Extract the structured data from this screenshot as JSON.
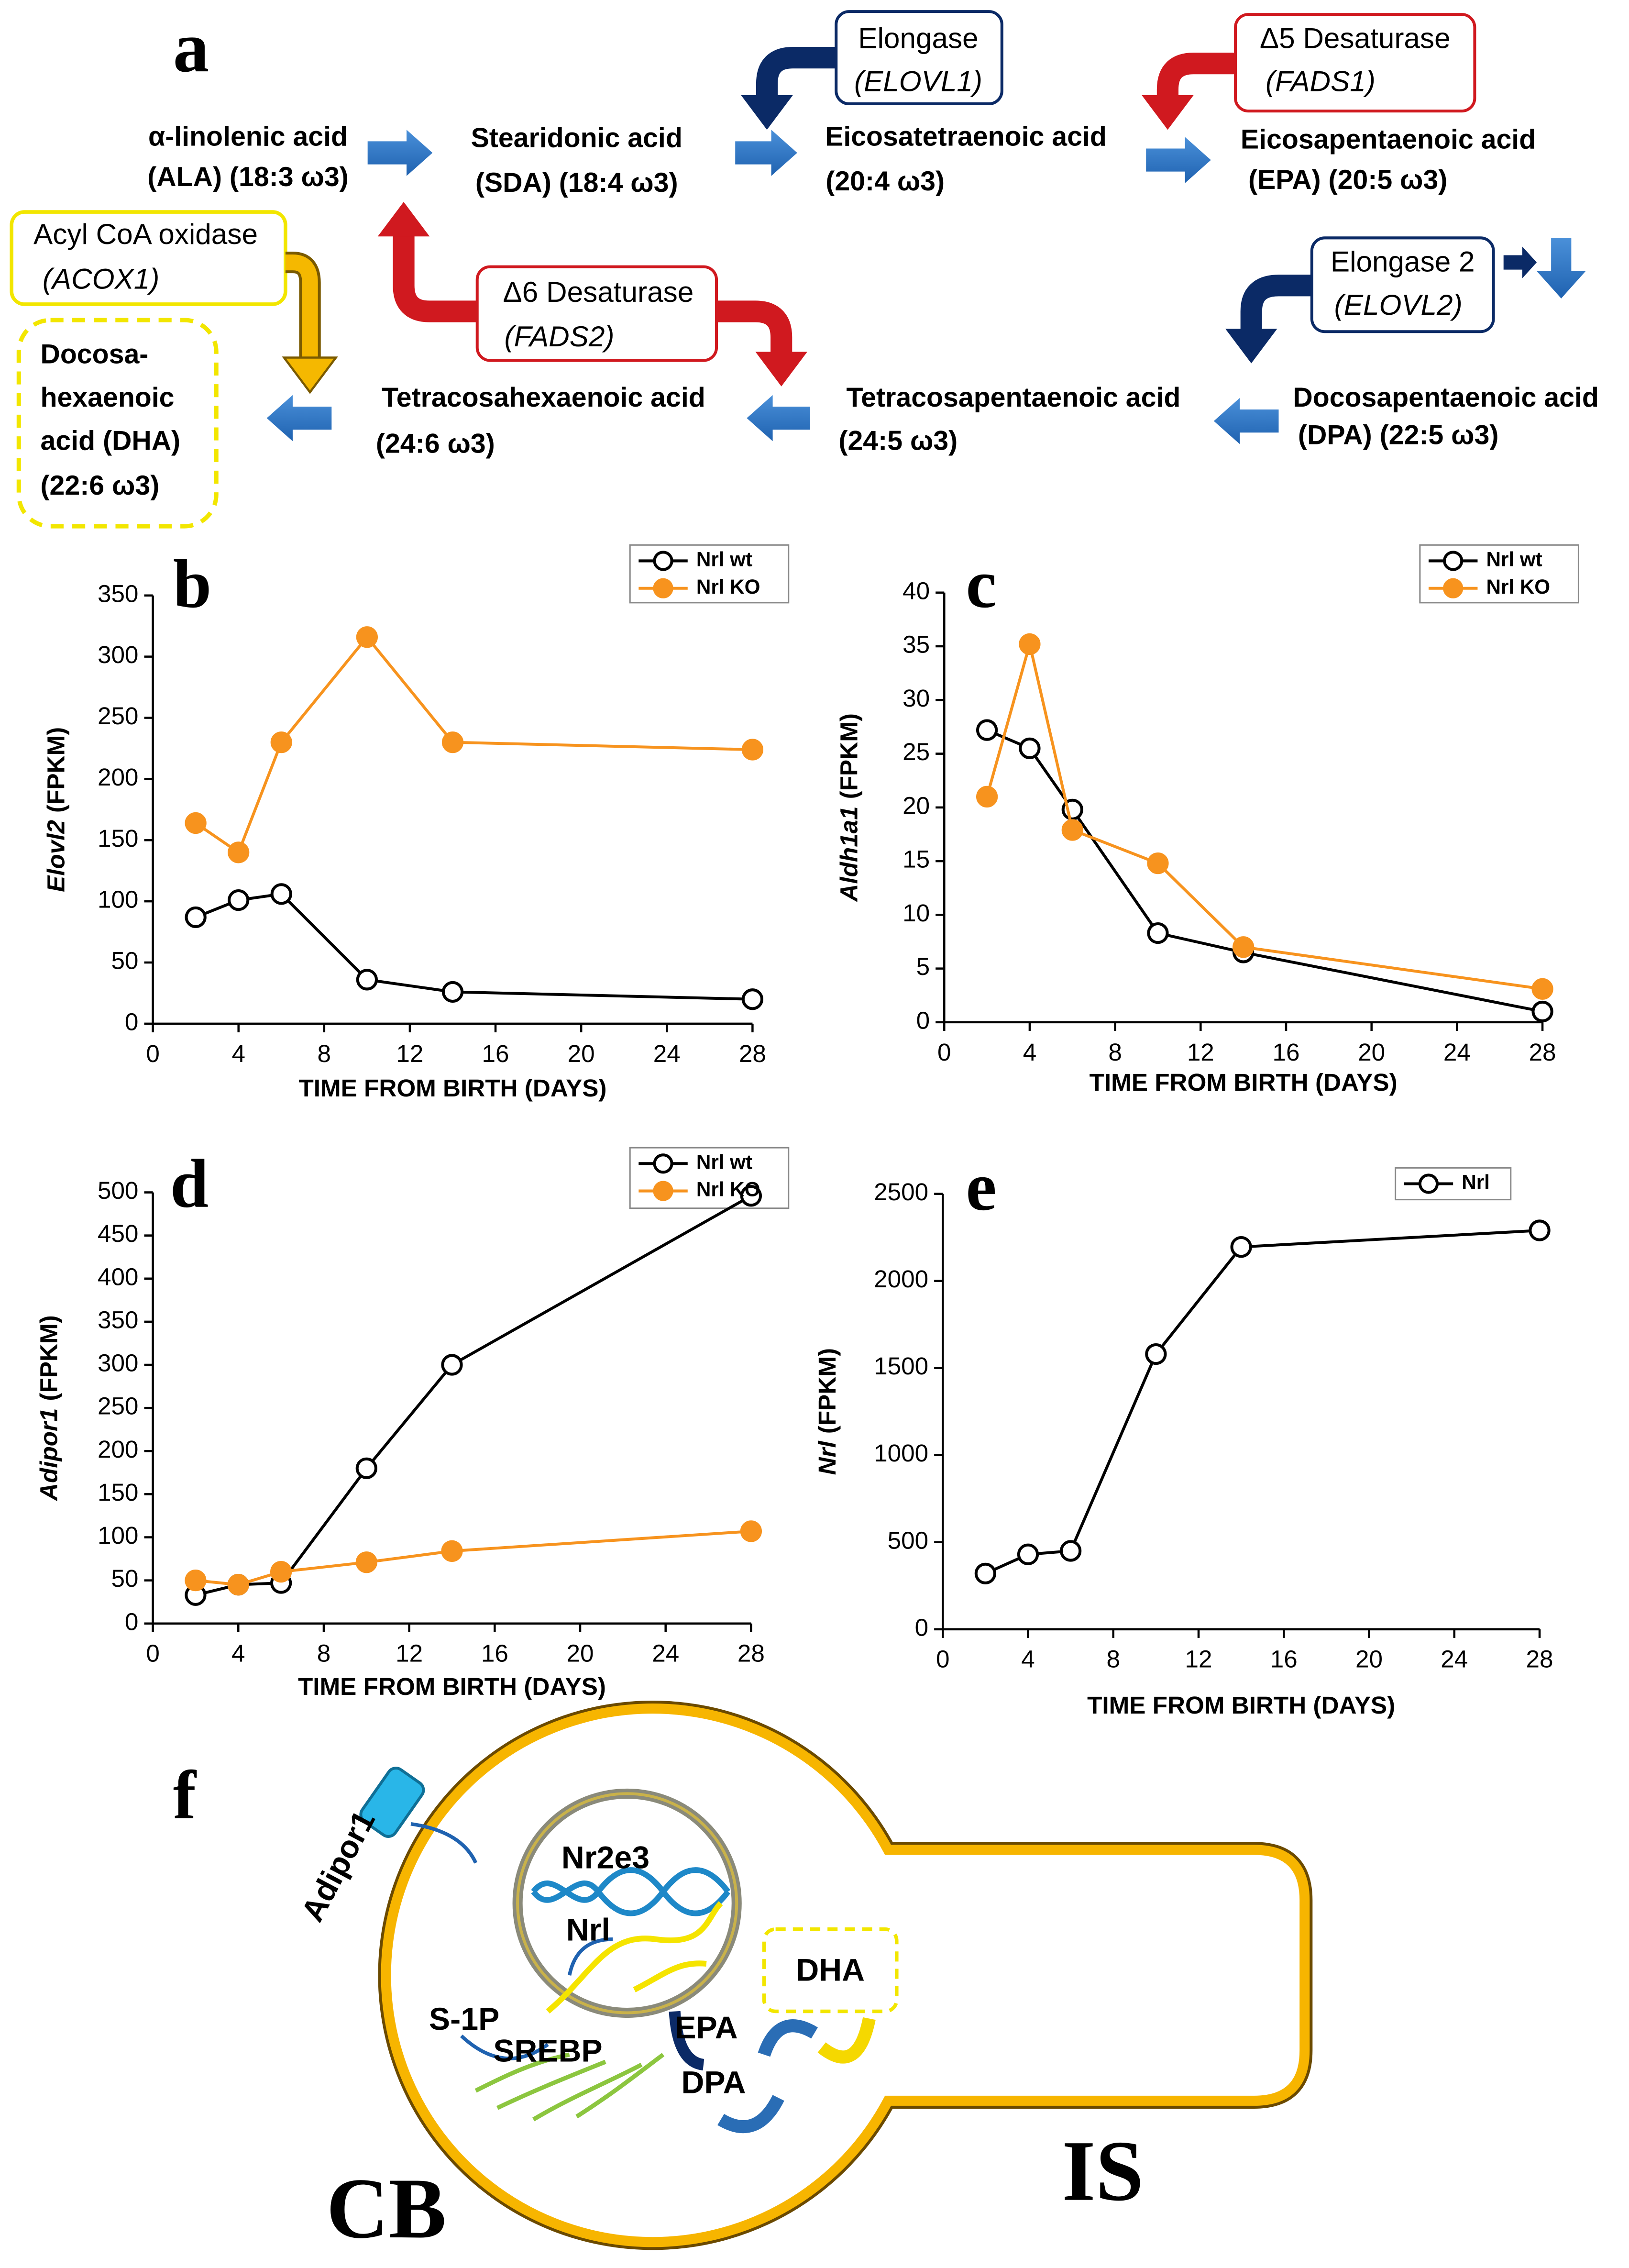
{
  "pathway": {
    "panel": "a",
    "nodes": [
      {
        "lines": [
          "α-linolenic acid",
          "(ALA) (18:3 ω3)"
        ]
      },
      {
        "lines": [
          "Stearidonic acid",
          "(SDA) (18:4 ω3)"
        ]
      },
      {
        "lines": [
          "Eicosatetraenoic acid",
          "(20:4 ω3)"
        ]
      },
      {
        "lines": [
          "Eicosapentaenoic acid",
          "(EPA) (20:5 ω3)"
        ]
      },
      {
        "lines": [
          "Docosapentaenoic acid",
          "(DPA) (22:5 ω3)"
        ]
      },
      {
        "lines": [
          "Tetracosapentaenoic acid",
          "(24:5 ω3)"
        ]
      },
      {
        "lines": [
          "Tetracosahexaenoic acid",
          "(24:6 ω3)"
        ]
      },
      {
        "lines": [
          "Docosa-",
          "hexaenoic",
          "acid (DHA)",
          "(22:6 ω3)"
        ]
      }
    ],
    "enzymes": [
      {
        "name": "Elongase",
        "gene": "(ELOVL1)"
      },
      {
        "name": "Δ5 Desaturase",
        "gene": "(FADS1)"
      },
      {
        "name": "Acyl CoA oxidase",
        "gene": "(ACOX1)"
      },
      {
        "name": "Δ6 Desaturase",
        "gene": "(FADS2)"
      },
      {
        "name": "Elongase 2",
        "gene": "(ELOVL2)"
      }
    ]
  },
  "chart_data": [
    {
      "type": "line",
      "panel": "b",
      "ylabel_gene": "Elovl2",
      "ylabel_unit": "(FPKM)",
      "xlabel": "TIME FROM BIRTH (DAYS)",
      "x": [
        2,
        4,
        6,
        10,
        14,
        28
      ],
      "series": [
        {
          "name": "Nrl wt",
          "color": "#000000",
          "marker": "open",
          "values": [
            87,
            101,
            106,
            36,
            26,
            20
          ]
        },
        {
          "name": "Nrl KO",
          "color": "#f7931e",
          "marker": "filled",
          "values": [
            164,
            140,
            230,
            316,
            230,
            224
          ]
        }
      ],
      "xlim": [
        0,
        28
      ],
      "xticks": [
        0,
        4,
        8,
        12,
        16,
        20,
        24,
        28
      ],
      "ylim": [
        0,
        350
      ],
      "yticks": [
        0,
        50,
        100,
        150,
        200,
        250,
        300,
        350
      ]
    },
    {
      "type": "line",
      "panel": "c",
      "ylabel_gene": "Aldh1a1",
      "ylabel_unit": "(FPKM)",
      "xlabel": "TIME FROM BIRTH (DAYS)",
      "x": [
        2,
        4,
        6,
        10,
        14,
        28
      ],
      "series": [
        {
          "name": "Nrl wt",
          "color": "#000000",
          "marker": "open",
          "values": [
            27.2,
            25.5,
            19.8,
            8.3,
            6.5,
            1.0
          ]
        },
        {
          "name": "Nrl KO",
          "color": "#f7931e",
          "marker": "filled",
          "values": [
            21,
            35.2,
            17.9,
            14.8,
            7,
            3.1
          ]
        }
      ],
      "xlim": [
        0,
        28
      ],
      "xticks": [
        0,
        4,
        8,
        12,
        16,
        20,
        24,
        28
      ],
      "ylim": [
        0,
        40
      ],
      "yticks": [
        0,
        5,
        10,
        15,
        20,
        25,
        30,
        35,
        40
      ]
    },
    {
      "type": "line",
      "panel": "d",
      "ylabel_gene": "Adipor1",
      "ylabel_unit": "(FPKM)",
      "xlabel": "TIME FROM BIRTH (DAYS)",
      "x": [
        2,
        4,
        6,
        10,
        14,
        28
      ],
      "series": [
        {
          "name": "Nrl wt",
          "color": "#000000",
          "marker": "open",
          "values": [
            33,
            45,
            47,
            180,
            300,
            496
          ]
        },
        {
          "name": "Nrl KO",
          "color": "#f7931e",
          "marker": "filled",
          "values": [
            50,
            45,
            60,
            71,
            84,
            107
          ]
        }
      ],
      "xlim": [
        0,
        28
      ],
      "xticks": [
        0,
        4,
        8,
        12,
        16,
        20,
        24,
        28
      ],
      "ylim": [
        0,
        500
      ],
      "yticks": [
        0,
        50,
        100,
        150,
        200,
        250,
        300,
        350,
        400,
        450,
        500
      ]
    },
    {
      "type": "line",
      "panel": "e",
      "ylabel_gene": "Nrl",
      "ylabel_unit": "(FPKM)",
      "xlabel": "TIME FROM BIRTH (DAYS)",
      "x": [
        2,
        4,
        6,
        10,
        14,
        28
      ],
      "series": [
        {
          "name": "Nrl",
          "color": "#000000",
          "marker": "open",
          "values": [
            320,
            430,
            450,
            1580,
            2195,
            2290
          ]
        }
      ],
      "xlim": [
        0,
        28
      ],
      "xticks": [
        0,
        4,
        8,
        12,
        16,
        20,
        24,
        28
      ],
      "ylim": [
        0,
        2500
      ],
      "yticks": [
        0,
        500,
        1000,
        1500,
        2000,
        2500
      ]
    }
  ],
  "cell_diagram": {
    "panel": "f",
    "labels": [
      "Adipor1",
      "Nr2e3",
      "Nrl",
      "S-1P",
      "SREBP",
      "EPA",
      "DPA",
      "DHA",
      "CB",
      "IS"
    ]
  }
}
